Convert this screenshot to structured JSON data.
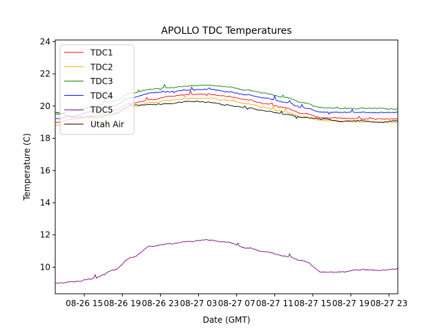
{
  "chart_data": {
    "type": "line",
    "title": "APOLLO TDC Temperatures",
    "xlabel": "Date (GMT)",
    "ylabel": "Temperature (C)",
    "x_units": "hours since 08-26 00:00 GMT",
    "xlim": [
      11.95,
      47.93
    ],
    "ylim": [
      8.35,
      24.1
    ],
    "x_ticks": [
      {
        "value": 15,
        "label": "08-26 15"
      },
      {
        "value": 19,
        "label": "08-26 19"
      },
      {
        "value": 23,
        "label": "08-26 23"
      },
      {
        "value": 27,
        "label": "08-27 03"
      },
      {
        "value": 31,
        "label": "08-27 07"
      },
      {
        "value": 35,
        "label": "08-27 11"
      },
      {
        "value": 39,
        "label": "08-27 15"
      },
      {
        "value": 43,
        "label": "08-27 19"
      },
      {
        "value": 47,
        "label": "08-27 23"
      }
    ],
    "y_ticks": [
      {
        "value": 10,
        "label": "10"
      },
      {
        "value": 12,
        "label": "12"
      },
      {
        "value": 14,
        "label": "14"
      },
      {
        "value": 16,
        "label": "16"
      },
      {
        "value": 18,
        "label": "18"
      },
      {
        "value": 20,
        "label": "20"
      },
      {
        "value": 22,
        "label": "22"
      },
      {
        "value": 24,
        "label": "24"
      }
    ],
    "grid": false,
    "legend_position": "top-left",
    "x": [
      12,
      14,
      16,
      18,
      20,
      22,
      24,
      26,
      28,
      30,
      32,
      34,
      36,
      38,
      40,
      42,
      44,
      46,
      48
    ],
    "series": [
      {
        "name": "TDC1",
        "color": "#ff0000",
        "values": [
          19.0,
          19.2,
          19.4,
          19.7,
          20.2,
          20.4,
          20.6,
          20.72,
          20.75,
          20.6,
          20.4,
          20.15,
          19.9,
          19.55,
          19.28,
          19.25,
          19.22,
          19.2,
          19.2
        ]
      },
      {
        "name": "TDC2",
        "color": "#ffa500",
        "values": [
          18.8,
          19.0,
          19.2,
          19.5,
          19.95,
          20.2,
          20.35,
          20.48,
          20.5,
          20.35,
          20.15,
          19.9,
          19.65,
          19.3,
          19.1,
          19.05,
          19.02,
          19.0,
          19.0
        ]
      },
      {
        "name": "TDC3",
        "color": "#008000",
        "values": [
          19.5,
          19.7,
          20.0,
          20.3,
          20.8,
          21.05,
          21.15,
          21.25,
          21.3,
          21.2,
          21.0,
          20.8,
          20.55,
          20.2,
          19.9,
          19.85,
          19.85,
          19.85,
          19.8
        ]
      },
      {
        "name": "TDC4",
        "color": "#0000ff",
        "values": [
          19.2,
          19.4,
          19.7,
          20.0,
          20.55,
          20.8,
          20.9,
          21.0,
          21.05,
          20.9,
          20.7,
          20.5,
          20.25,
          19.9,
          19.62,
          19.6,
          19.6,
          19.6,
          19.6
        ]
      },
      {
        "name": "TDC5",
        "color": "#800080",
        "values": [
          9.0,
          9.1,
          9.3,
          9.8,
          10.6,
          11.3,
          11.45,
          11.6,
          11.7,
          11.55,
          11.2,
          10.95,
          10.7,
          10.4,
          9.7,
          9.7,
          9.85,
          9.8,
          9.9
        ]
      },
      {
        "name": "Utah Air",
        "color": "#000000",
        "values": [
          19.6,
          19.3,
          19.3,
          19.5,
          20.05,
          20.1,
          20.15,
          20.3,
          20.25,
          20.05,
          19.9,
          19.7,
          19.5,
          19.3,
          19.2,
          19.05,
          19.1,
          19.0,
          19.1
        ]
      }
    ]
  }
}
